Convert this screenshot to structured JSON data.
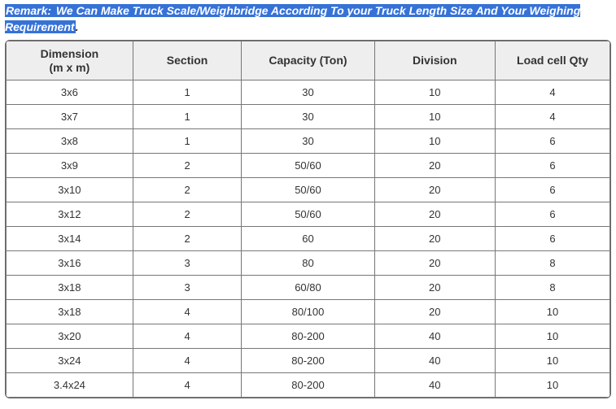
{
  "remark": {
    "prefix": "Remark:",
    "highlighted": " We Can Make Truck Scale/Weighbridge According To your Truck Length Size And Your Weighing Requirement",
    "tail": "."
  },
  "table": {
    "type": "table",
    "columns": [
      {
        "label_line1": "Dimension",
        "label_line2": "(m x m)"
      },
      {
        "label_line1": "Section",
        "label_line2": ""
      },
      {
        "label_line1": "Capacity (Ton)",
        "label_line2": ""
      },
      {
        "label_line1": "Division",
        "label_line2": ""
      },
      {
        "label_line1": "Load cell Qty",
        "label_line2": ""
      }
    ],
    "rows": [
      [
        "3x6",
        "1",
        "30",
        "10",
        "4"
      ],
      [
        "3x7",
        "1",
        "30",
        "10",
        "4"
      ],
      [
        "3x8",
        "1",
        "30",
        "10",
        "6"
      ],
      [
        "3x9",
        "2",
        "50/60",
        "20",
        "6"
      ],
      [
        "3x10",
        "2",
        "50/60",
        "20",
        "6"
      ],
      [
        "3x12",
        "2",
        "50/60",
        "20",
        "6"
      ],
      [
        "3x14",
        "2",
        "60",
        "20",
        "6"
      ],
      [
        "3x16",
        "3",
        "80",
        "20",
        "8"
      ],
      [
        "3x18",
        "3",
        "60/80",
        "20",
        "8"
      ],
      [
        "3x18",
        "4",
        "80/100",
        "20",
        "10"
      ],
      [
        "3x20",
        "4",
        "80-200",
        "40",
        "10"
      ],
      [
        "3x24",
        "4",
        "80-200",
        "40",
        "10"
      ],
      [
        "3.4x24",
        "4",
        "80-200",
        "40",
        "10"
      ]
    ],
    "header_bg": "#eeeeee",
    "border_color": "#777777",
    "text_color": "#333333",
    "highlight_bg": "#3672d6",
    "highlight_text": "#ffffff"
  }
}
